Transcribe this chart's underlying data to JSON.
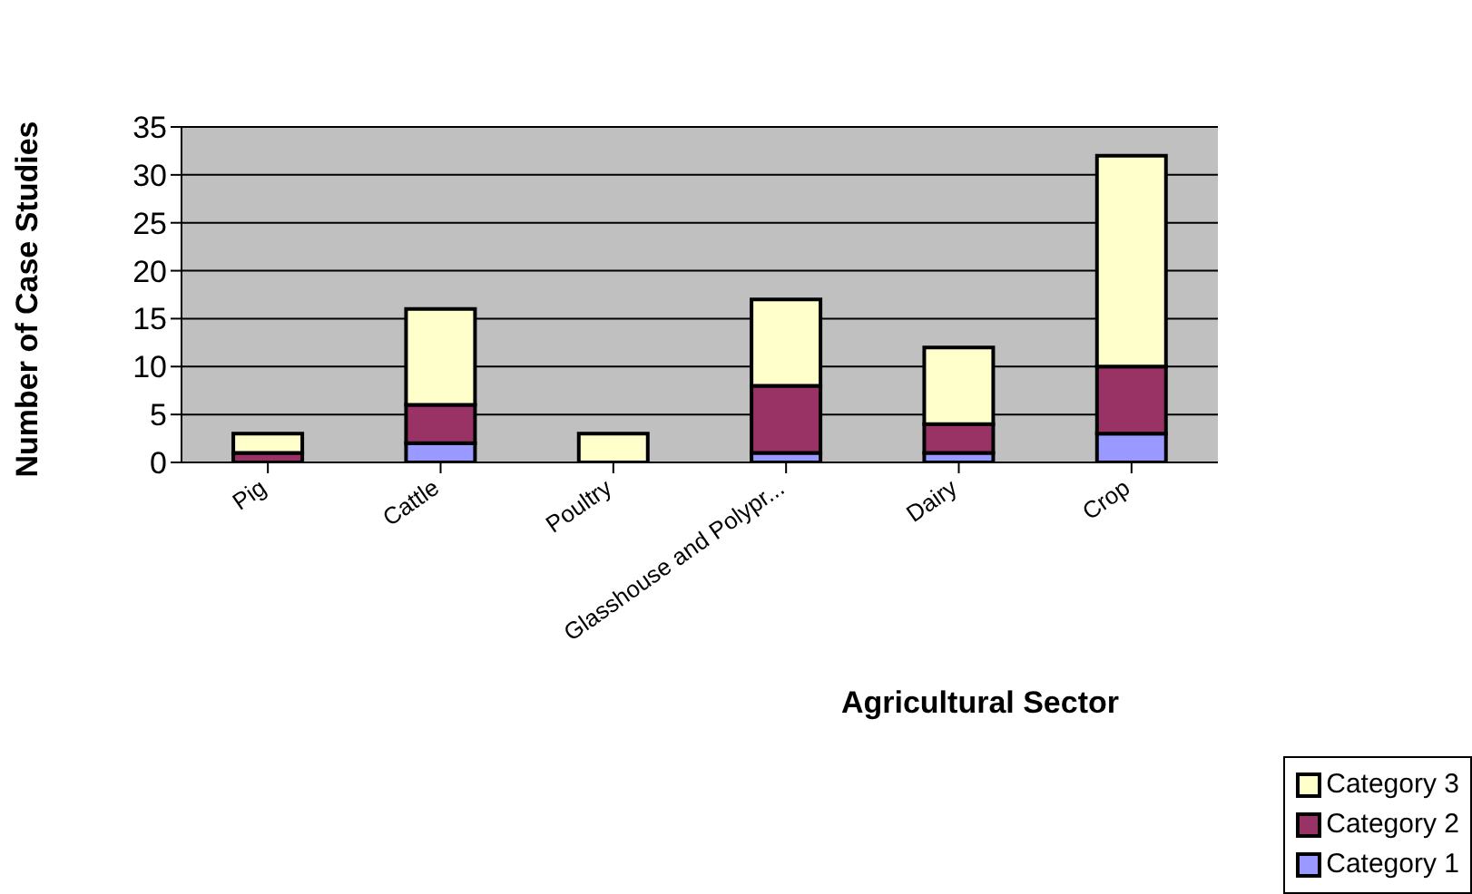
{
  "chart_data": {
    "type": "bar",
    "stacked": true,
    "xlabel": "Agricultural Sector",
    "ylabel": "Number of Case Studies",
    "categories": [
      "Pig",
      "Cattle",
      "Poultry",
      "Glasshouse and Polypr...",
      "Dairy",
      "Crop"
    ],
    "series": [
      {
        "name": "Category 1",
        "color": "#9999ff",
        "values": [
          0,
          2,
          0,
          1,
          1,
          3
        ]
      },
      {
        "name": "Category 2",
        "color": "#993366",
        "values": [
          1,
          4,
          0,
          7,
          3,
          7
        ]
      },
      {
        "name": "Category 3",
        "color": "#ffffcc",
        "values": [
          2,
          10,
          3,
          9,
          8,
          22
        ]
      }
    ],
    "ylim": [
      0,
      35
    ],
    "yticks": [
      0,
      5,
      10,
      15,
      20,
      25,
      30,
      35
    ],
    "grid": "y",
    "legend": "bottom right"
  }
}
